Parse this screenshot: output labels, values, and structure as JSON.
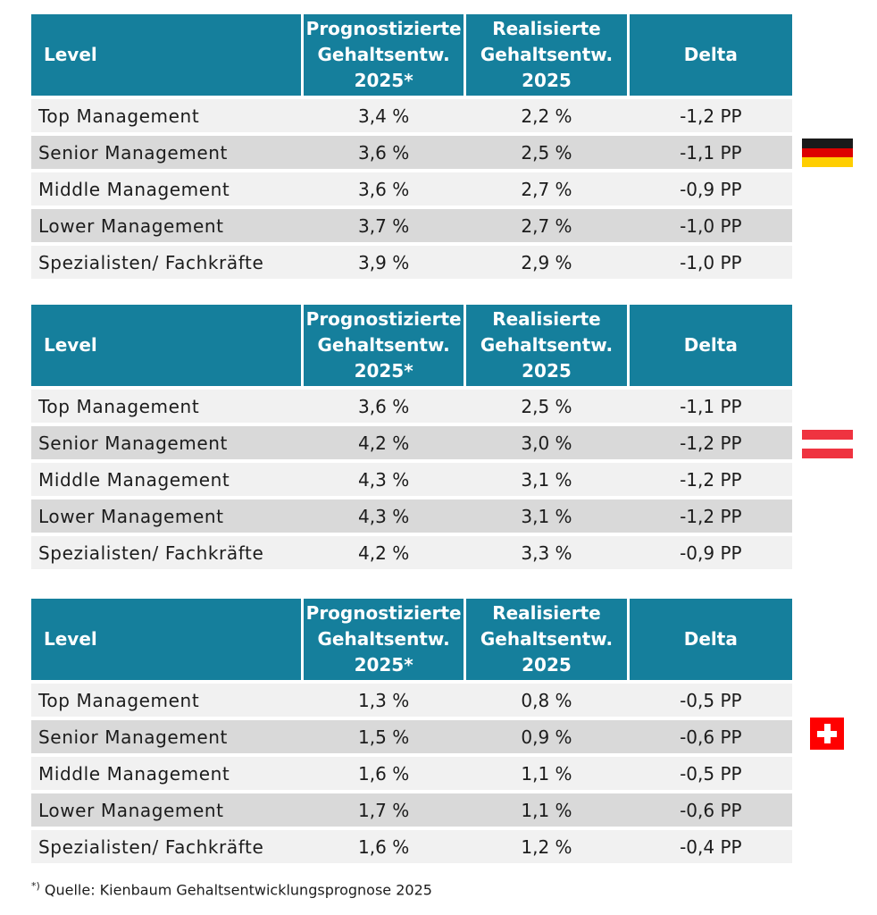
{
  "footnote": {
    "mark": "*)",
    "text": "Quelle: Kienbaum Gehaltsentwicklungsprognose 2025"
  },
  "tables": [
    {
      "flag": "germany-flag",
      "headers": {
        "level": "Level",
        "prognosticated": "Prognostizierte\nGehaltsentw.\n2025*",
        "realized": "Realisierte\nGehaltsentw.\n2025",
        "delta": "Delta"
      },
      "rows": [
        {
          "level": "Top Management",
          "prognosticated": "3,4 %",
          "realized": "2,2 %",
          "delta": "-1,2 PP"
        },
        {
          "level": "Senior Management",
          "prognosticated": "3,6 %",
          "realized": "2,5 %",
          "delta": "-1,1 PP"
        },
        {
          "level": "Middle Management",
          "prognosticated": "3,6 %",
          "realized": "2,7 %",
          "delta": "-0,9 PP"
        },
        {
          "level": "Lower Management",
          "prognosticated": "3,7 %",
          "realized": "2,7 %",
          "delta": "-1,0 PP"
        },
        {
          "level": "Spezialisten/ Fachkräfte",
          "prognosticated": "3,9 %",
          "realized": "2,9 %",
          "delta": "-1,0 PP"
        }
      ]
    },
    {
      "flag": "austria-flag",
      "headers": {
        "level": "Level",
        "prognosticated": "Prognostizierte\nGehaltsentw.\n2025*",
        "realized": "Realisierte\nGehaltsentw.\n2025",
        "delta": "Delta"
      },
      "rows": [
        {
          "level": "Top Management",
          "prognosticated": "3,6 %",
          "realized": "2,5 %",
          "delta": "-1,1 PP"
        },
        {
          "level": "Senior Management",
          "prognosticated": "4,2 %",
          "realized": "3,0 %",
          "delta": "-1,2 PP"
        },
        {
          "level": "Middle Management",
          "prognosticated": "4,3 %",
          "realized": "3,1 %",
          "delta": "-1,2 PP"
        },
        {
          "level": "Lower Management",
          "prognosticated": "4,3 %",
          "realized": "3,1 %",
          "delta": "-1,2 PP"
        },
        {
          "level": "Spezialisten/ Fachkräfte",
          "prognosticated": "4,2 %",
          "realized": "3,3 %",
          "delta": "-0,9 PP"
        }
      ]
    },
    {
      "flag": "switzerland-flag",
      "headers": {
        "level": "Level",
        "prognosticated": "Prognostizierte\nGehaltsentw.\n2025*",
        "realized": "Realisierte\nGehaltsentw.\n2025",
        "delta": "Delta"
      },
      "rows": [
        {
          "level": "Top Management",
          "prognosticated": "1,3 %",
          "realized": "0,8 %",
          "delta": "-0,5 PP"
        },
        {
          "level": "Senior Management",
          "prognosticated": "1,5 %",
          "realized": "0,9 %",
          "delta": "-0,6 PP"
        },
        {
          "level": "Middle Management",
          "prognosticated": "1,6 %",
          "realized": "1,1 %",
          "delta": "-0,5 PP"
        },
        {
          "level": "Lower Management",
          "prognosticated": "1,7 %",
          "realized": "1,1 %",
          "delta": "-0,6 PP"
        },
        {
          "level": "Spezialisten/ Fachkräfte",
          "prognosticated": "1,6 %",
          "realized": "1,2 %",
          "delta": "-0,4 PP"
        }
      ]
    }
  ]
}
